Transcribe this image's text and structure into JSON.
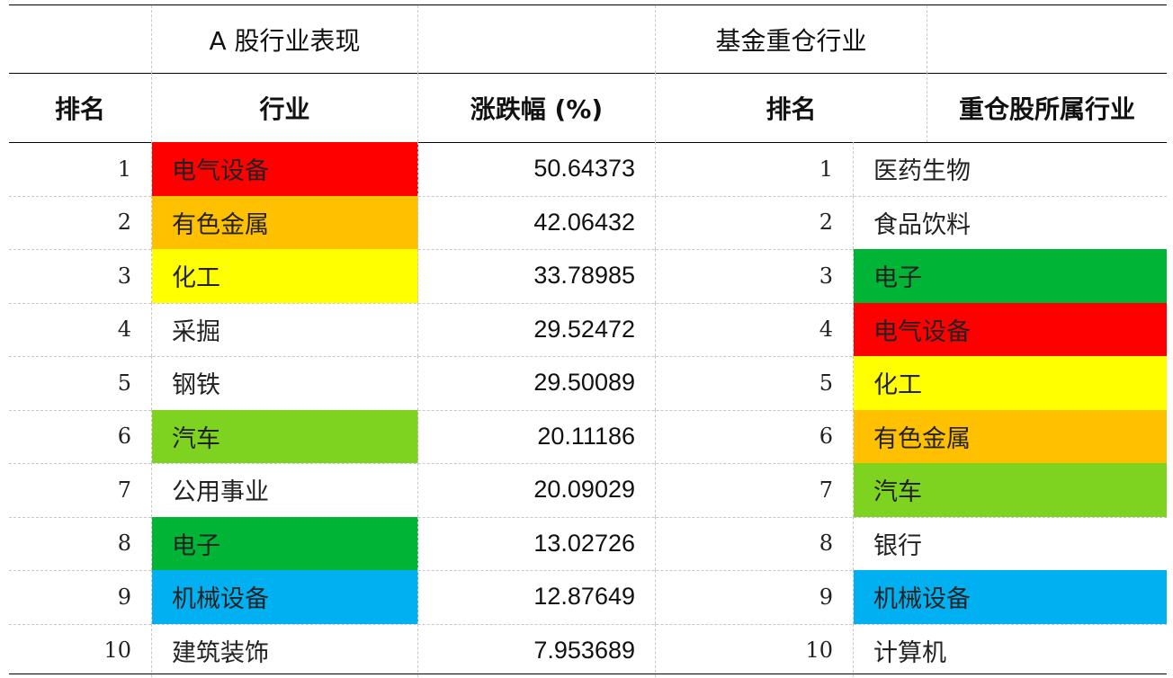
{
  "headers": {
    "a_share_title": "A 股行业表现",
    "fund_title": "基金重仓行业",
    "rank": "排名",
    "industry": "行业",
    "change_pct": "涨跌幅 (%)",
    "rank2": "排名",
    "fund_industry": "重仓股所属行业"
  },
  "colors": {
    "red": "#ff0000",
    "orange": "#ffc000",
    "yellow": "#ffff00",
    "lightgreen": "#7ed321",
    "green": "#00b535",
    "blue": "#00b0f0"
  },
  "rows": [
    {
      "rank": "1",
      "industry": "电气设备",
      "industry_color": "#ff0000",
      "pct": "50.64373",
      "rank2": "1",
      "fund_industry": "医药生物",
      "fund_color": ""
    },
    {
      "rank": "2",
      "industry": "有色金属",
      "industry_color": "#ffc000",
      "pct": "42.06432",
      "rank2": "2",
      "fund_industry": "食品饮料",
      "fund_color": ""
    },
    {
      "rank": "3",
      "industry": "化工",
      "industry_color": "#ffff00",
      "pct": "33.78985",
      "rank2": "3",
      "fund_industry": "电子",
      "fund_color": "#00b535"
    },
    {
      "rank": "4",
      "industry": "采掘",
      "industry_color": "",
      "pct": "29.52472",
      "rank2": "4",
      "fund_industry": "电气设备",
      "fund_color": "#ff0000"
    },
    {
      "rank": "5",
      "industry": "钢铁",
      "industry_color": "",
      "pct": "29.50089",
      "rank2": "5",
      "fund_industry": "化工",
      "fund_color": "#ffff00"
    },
    {
      "rank": "6",
      "industry": "汽车",
      "industry_color": "#7ed321",
      "pct": "20.11186",
      "rank2": "6",
      "fund_industry": "有色金属",
      "fund_color": "#ffc000"
    },
    {
      "rank": "7",
      "industry": "公用事业",
      "industry_color": "",
      "pct": "20.09029",
      "rank2": "7",
      "fund_industry": "汽车",
      "fund_color": "#7ed321"
    },
    {
      "rank": "8",
      "industry": "电子",
      "industry_color": "#00b535",
      "pct": "13.02726",
      "rank2": "8",
      "fund_industry": "银行",
      "fund_color": ""
    },
    {
      "rank": "9",
      "industry": "机械设备",
      "industry_color": "#00b0f0",
      "pct": "12.87649",
      "rank2": "9",
      "fund_industry": "机械设备",
      "fund_color": "#00b0f0"
    },
    {
      "rank": "10",
      "industry": "建筑装饰",
      "industry_color": "",
      "pct": "7.953689",
      "rank2": "10",
      "fund_industry": "计算机",
      "fund_color": ""
    }
  ]
}
